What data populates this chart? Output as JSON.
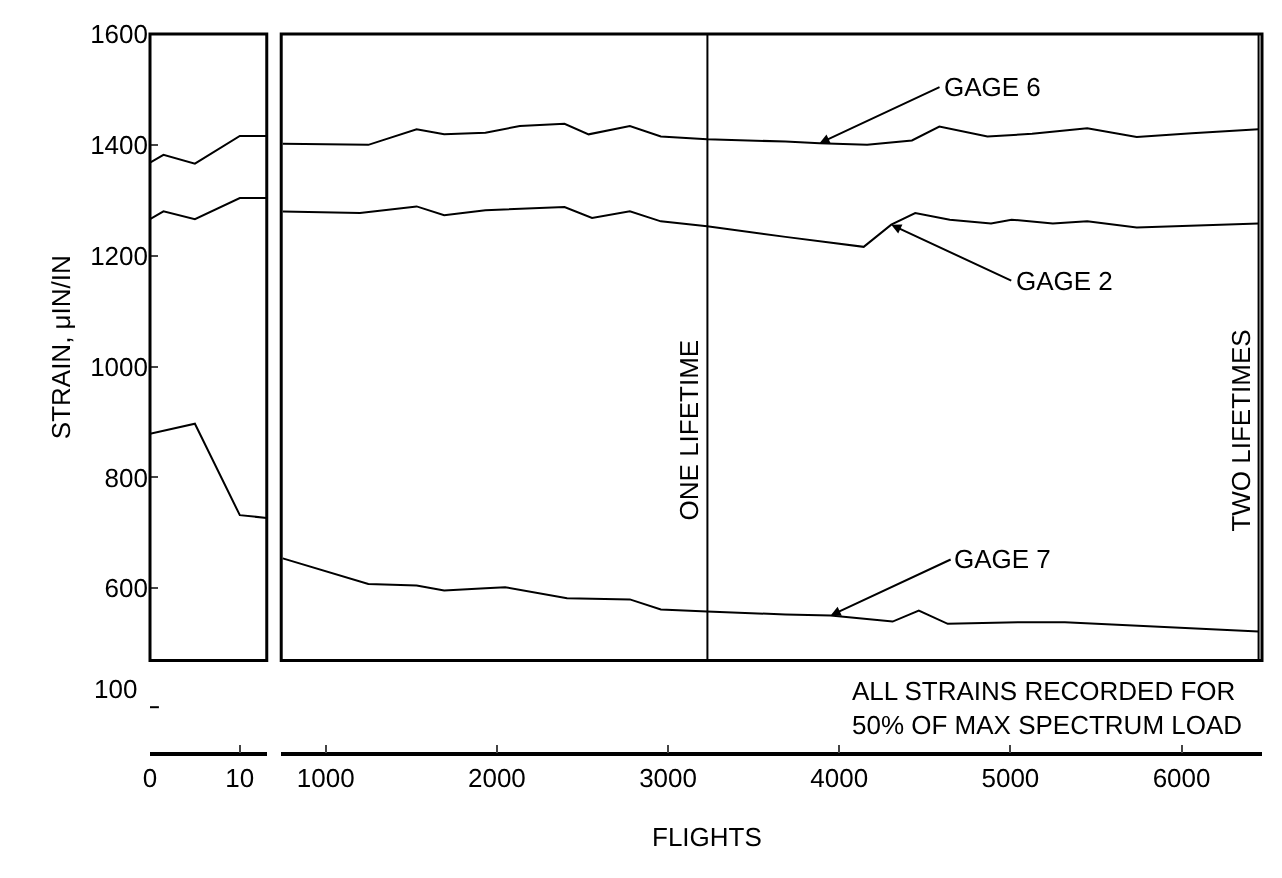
{
  "chart_data": [
    {
      "type": "line",
      "ylabel": "STRAIN, μIN/IN",
      "xlim": [
        0,
        13
      ],
      "xticks": [
        0,
        10
      ],
      "ylim": [
        470,
        1600
      ],
      "yticks": [
        600,
        800,
        1000,
        1200,
        1400,
        1600
      ],
      "series": [
        {
          "color": "#000000",
          "x": [
            0,
            1.5,
            5,
            10,
            13
          ],
          "values": [
            1368,
            1382,
            1366,
            1416,
            1416
          ]
        },
        {
          "color": "#000000",
          "x": [
            0,
            1.5,
            5,
            10,
            13
          ],
          "values": [
            1266,
            1280,
            1266,
            1304,
            1304
          ]
        },
        {
          "color": "#000000",
          "x": [
            0,
            5,
            10,
            13
          ],
          "values": [
            879,
            897,
            732,
            727
          ]
        }
      ]
    },
    {
      "type": "line",
      "xlabel": "FLIGHTS",
      "xlim": [
        740,
        6470
      ],
      "xticks": [
        1000,
        2000,
        3000,
        4000,
        5000,
        6000
      ],
      "ylim": [
        470,
        1600
      ],
      "tick_labels": "x",
      "series": [
        {
          "color": "#000000",
          "x": [
            749,
            1249,
            1531,
            1692,
            1933,
            2134,
            2395,
            2536,
            2777,
            2958,
            3228,
            3686,
            3885,
            4163,
            4425,
            4585,
            4866,
            5127,
            5449,
            5738,
            6060,
            6450
          ],
          "values": [
            1402,
            1400,
            1428,
            1419,
            1422,
            1434,
            1438,
            1419,
            1434,
            1415,
            1410,
            1406,
            1403,
            1400,
            1408,
            1433,
            1415,
            1420,
            1430,
            1414,
            1421,
            1428
          ]
        },
        {
          "color": "#000000",
          "x": [
            749,
            1200,
            1531,
            1692,
            1933,
            2395,
            2556,
            2777,
            2958,
            3228,
            3686,
            4143,
            4304,
            4444,
            4646,
            4887,
            5007,
            5248,
            5449,
            5738,
            6450
          ],
          "values": [
            1280,
            1277,
            1289,
            1273,
            1282,
            1288,
            1268,
            1280,
            1262,
            1253,
            1234,
            1216,
            1256,
            1277,
            1265,
            1258,
            1265,
            1258,
            1262,
            1251,
            1258
          ]
        },
        {
          "color": "#000000",
          "x": [
            749,
            1249,
            1531,
            1692,
            1933,
            2048,
            2410,
            2777,
            2958,
            3228,
            3686,
            3950,
            4312,
            4465,
            4634,
            5076,
            5318,
            6450
          ],
          "values": [
            654,
            608,
            605,
            596,
            600,
            602,
            582,
            580,
            562,
            558,
            553,
            551,
            540,
            560,
            536,
            539,
            539,
            522
          ]
        }
      ],
      "ref_lines": [
        {
          "axis": "x",
          "value": 3230,
          "label": "ONE LIFETIME"
        },
        {
          "axis": "x",
          "value": 6450,
          "label": "TWO LIFETIMES"
        }
      ],
      "annotations": [
        {
          "text": "GAGE 6",
          "x": 3885,
          "y": 1403
        },
        {
          "text": "GAGE 2",
          "x": 4304,
          "y": 1256
        },
        {
          "text": "GAGE 7",
          "x": 3950,
          "y": 551
        },
        "ALL STRAINS RECORDED FOR\n50% OF MAX SPECTRUM LOAD"
      ]
    },
    {
      "type": "other",
      "annotations": [
        "100"
      ]
    }
  ]
}
